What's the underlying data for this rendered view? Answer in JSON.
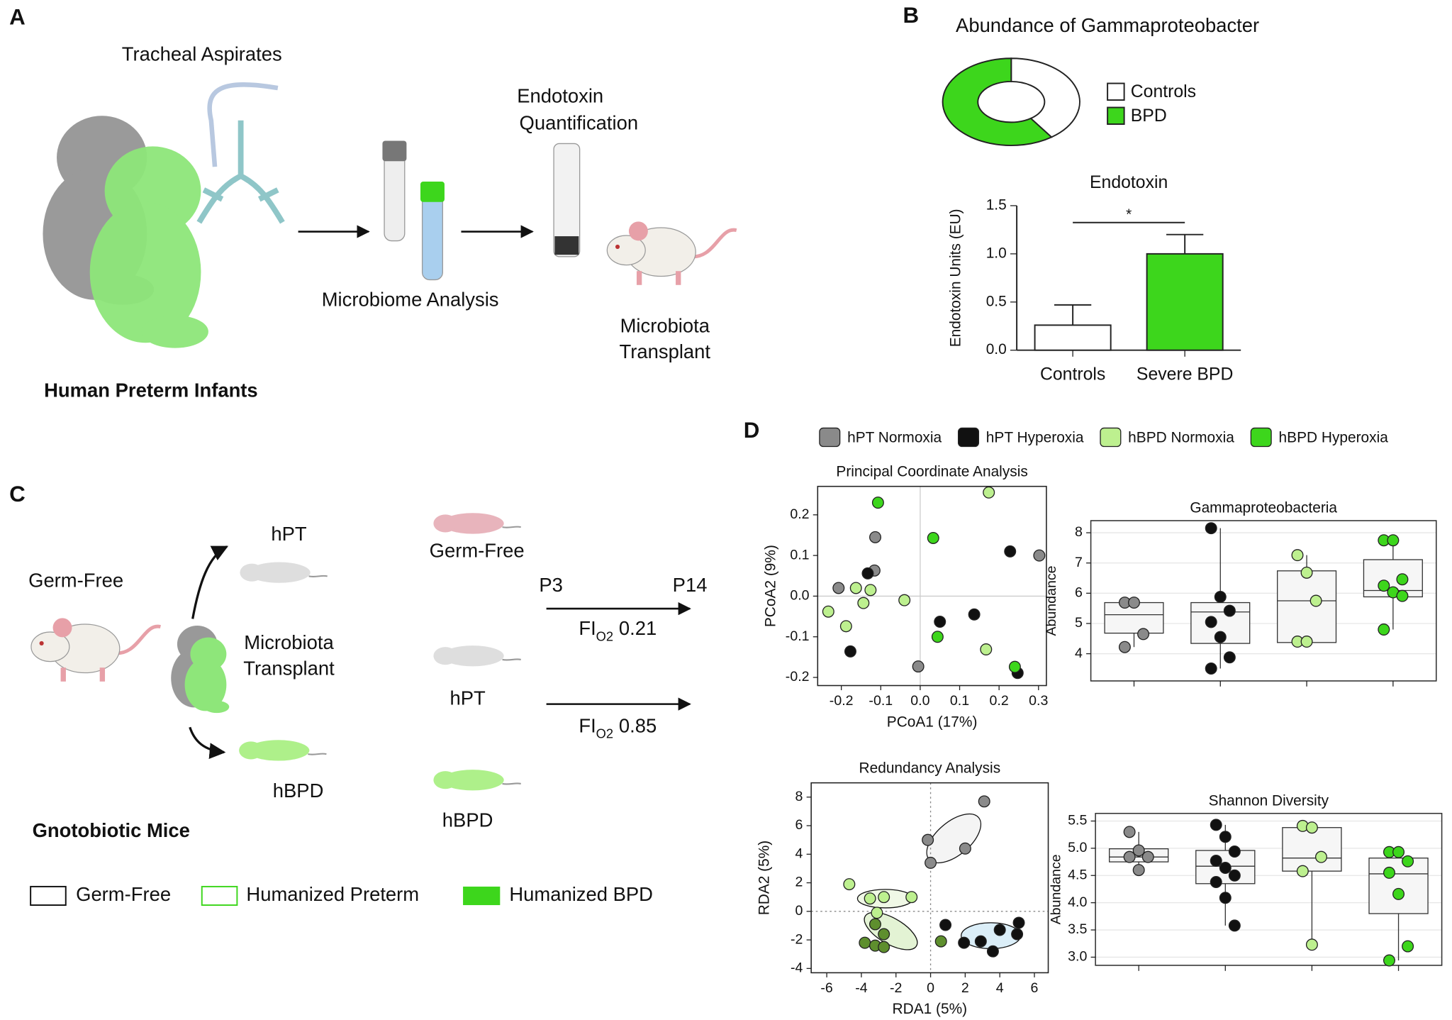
{
  "panels": {
    "A": {
      "label": "A",
      "aspirates": "Tracheal Aspirates",
      "microbiome": "Microbiome Analysis",
      "endotoxin": [
        "Endotoxin",
        "Quantification"
      ],
      "transplant": [
        "Microbiota",
        "Transplant"
      ],
      "caption": "Human Preterm Infants"
    },
    "B": {
      "label": "B"
    },
    "C": {
      "label": "C",
      "germ_free_left": "Germ-Free",
      "hpt_left": "hPT",
      "transplant": [
        "Microbiota",
        "Transplant"
      ],
      "hbpd_left": "hBPD",
      "germ_free_right": "Germ-Free",
      "hpt_right": "hPT",
      "hbpd_right": "hBPD",
      "start": "P3",
      "end": "P14",
      "fio2_low": {
        "base": "FI",
        "sub": "O2",
        "value": 0.21
      },
      "fio2_high": {
        "base": "FI",
        "sub": "O2",
        "value": 0.85
      },
      "caption": "Gnotobiotic Mice",
      "legend": [
        "Germ-Free",
        "Humanized Preterm",
        "Humanized BPD"
      ]
    },
    "D": {
      "label": "D"
    }
  },
  "chart_data": [
    {
      "type": "pie",
      "title": "Abundance of Gammaproteobacter",
      "categories": [
        "Controls",
        "BPD"
      ],
      "values": [
        40,
        60
      ],
      "colors": [
        "#ffffff",
        "#3dd61c"
      ],
      "donut": true
    },
    {
      "type": "bar",
      "title": "Endotoxin",
      "ylabel": "Endotoxin Units (EU)",
      "categories": [
        "Controls",
        "Severe BPD"
      ],
      "values": [
        0.26,
        1.0
      ],
      "errors": [
        0.21,
        0.2
      ],
      "colors": [
        "#ffffff",
        "#3dd61c"
      ],
      "ylim": [
        0,
        1.5
      ],
      "yticks": [
        {
          "value": 0,
          "label": "0.0"
        },
        0.5,
        {
          "value": 1,
          "label": "1.0"
        },
        1.5
      ],
      "annotation": "*"
    },
    {
      "type": "scatter",
      "title": "Principal Coordinate Analysis",
      "xlabel": "PCoA1 (17%)",
      "ylabel": "PCoA2 (9%)",
      "xlim": [
        -0.26,
        0.32
      ],
      "ylim": [
        -0.22,
        0.27
      ],
      "xticks": [
        -0.2,
        -0.1,
        {
          "value": 0,
          "label": "0.0"
        },
        0.1,
        0.2,
        0.3
      ],
      "yticks": [
        -0.2,
        -0.1,
        {
          "value": 0,
          "label": "0.0"
        },
        0.1,
        0.2
      ],
      "zero_line_style": "solid",
      "legend": "top",
      "series": [
        {
          "name": "hPT Normoxia",
          "color": "#8a8a8a",
          "x": [
            -0.207,
            -0.114,
            -0.116,
            -0.005,
            0.302
          ],
          "values": [
            0.02,
            0.145,
            0.063,
            -0.173,
            0.1
          ]
        },
        {
          "name": "hPT Hyperoxia",
          "color": "#111111",
          "x": [
            -0.133,
            -0.177,
            0.05,
            0.137,
            0.228,
            0.247
          ],
          "values": [
            0.056,
            -0.136,
            -0.063,
            -0.045,
            0.11,
            -0.189
          ]
        },
        {
          "name": "hBPD Normoxia",
          "color": "#bdf08f",
          "x": [
            -0.233,
            -0.188,
            -0.163,
            -0.144,
            -0.126,
            -0.04,
            0.174,
            0.167
          ],
          "values": [
            -0.038,
            -0.074,
            0.02,
            -0.017,
            0.015,
            -0.01,
            0.255,
            -0.131
          ]
        },
        {
          "name": "hBPD Hyperoxia",
          "color": "#3dd61c",
          "x": [
            -0.107,
            0.033,
            0.044,
            0.24
          ],
          "values": [
            0.23,
            0.143,
            -0.1,
            -0.174
          ]
        }
      ]
    },
    {
      "type": "box",
      "title": "Gammaproteobacteria",
      "ylabel": "Abundance",
      "categories": [
        null,
        null,
        null,
        null
      ],
      "ylim": [
        3.1,
        8.4
      ],
      "yticks": [
        4,
        5,
        6,
        7,
        8
      ],
      "grid": true,
      "boxes": [
        {
          "color": "#8a8a8a",
          "whisker_low": 4.22,
          "q1": 4.68,
          "median": 5.29,
          "q3": 5.69,
          "whisker_high": 5.69,
          "points": [
            5.69,
            5.69,
            4.65,
            4.22
          ]
        },
        {
          "color": "#111111",
          "whisker_low": 3.51,
          "q1": 4.34,
          "median": 5.38,
          "q3": 5.69,
          "whisker_high": 8.15,
          "points": [
            8.15,
            5.88,
            5.42,
            5.05,
            4.55,
            3.88,
            3.51
          ]
        },
        {
          "color": "#bdf08f",
          "whisker_low": 4.37,
          "q1": 4.37,
          "median": 5.75,
          "q3": 6.74,
          "whisker_high": 7.26,
          "points": [
            7.26,
            6.68,
            5.75,
            4.4,
            4.4
          ]
        },
        {
          "color": "#3dd61c",
          "whisker_low": 4.8,
          "q1": 5.88,
          "median": 6.09,
          "q3": 7.11,
          "whisker_high": 7.75,
          "points": [
            7.75,
            7.75,
            6.46,
            6.25,
            6.03,
            5.91,
            4.8
          ]
        }
      ]
    },
    {
      "type": "scatter",
      "title": "Redundancy Analysis",
      "xlabel": "RDA1 (5%)",
      "ylabel": "RDA2 (5%)",
      "xlim": [
        -6.9,
        6.8
      ],
      "ylim": [
        -4.3,
        9
      ],
      "xticks": [
        -6,
        -4,
        -2,
        0,
        2,
        4,
        6
      ],
      "yticks": [
        -4,
        -2,
        0,
        2,
        4,
        6,
        8
      ],
      "zero_line_style": "dotted",
      "series": [
        {
          "color": "#8a8a8a",
          "x": [
            3.1,
            -0.16,
            0,
            2.0
          ],
          "values": [
            7.7,
            5.0,
            3.4,
            4.4
          ]
        },
        {
          "color": "#111111",
          "x": [
            0.86,
            1.93,
            2.9,
            3.6,
            4.0,
            5.1,
            5.0
          ],
          "values": [
            -0.95,
            -2.2,
            -2.1,
            -2.8,
            -1.3,
            -0.8,
            -1.6
          ]
        },
        {
          "color": "#bdf08f",
          "x": [
            -4.7,
            -3.5,
            -2.7,
            -1.1,
            -3.1
          ],
          "values": [
            1.9,
            0.9,
            1.0,
            1.0,
            -0.1
          ]
        },
        {
          "color": "#5e8f2e",
          "x": [
            -3.2,
            -2.7,
            -3.8,
            -3.2,
            -2.7,
            0.6
          ],
          "values": [
            -0.9,
            -1.6,
            -2.2,
            -2.4,
            -2.5,
            -2.1
          ]
        }
      ]
    },
    {
      "type": "box",
      "title": "Shannon Diversity",
      "ylabel": "Abundance",
      "categories": [
        null,
        null,
        null,
        null
      ],
      "ylim": [
        2.85,
        5.64
      ],
      "yticks": [
        {
          "value": 3,
          "label": "3.0"
        },
        3.5,
        {
          "value": 4,
          "label": "4.0"
        },
        4.5,
        {
          "value": 5,
          "label": "5.0"
        },
        5.5
      ],
      "grid": true,
      "boxes": [
        {
          "color": "#8a8a8a",
          "whisker_low": 4.6,
          "q1": 4.75,
          "median": 4.84,
          "q3": 4.99,
          "whisker_high": 5.3,
          "points": [
            5.3,
            4.96,
            4.84,
            4.84,
            4.6
          ]
        },
        {
          "color": "#111111",
          "whisker_low": 3.58,
          "q1": 4.35,
          "median": 4.67,
          "q3": 4.96,
          "whisker_high": 5.43,
          "points": [
            5.43,
            5.21,
            4.94,
            4.77,
            4.64,
            4.5,
            4.38,
            4.09,
            3.58
          ]
        },
        {
          "color": "#bdf08f",
          "whisker_low": 3.23,
          "q1": 4.58,
          "median": 4.82,
          "q3": 5.38,
          "whisker_high": 5.41,
          "points": [
            5.41,
            5.38,
            4.84,
            4.58,
            3.23
          ]
        },
        {
          "color": "#3dd61c",
          "whisker_low": 2.94,
          "q1": 3.8,
          "median": 4.53,
          "q3": 4.82,
          "whisker_high": 4.93,
          "points": [
            4.93,
            4.93,
            4.76,
            4.55,
            4.16,
            3.2,
            2.94
          ]
        }
      ]
    }
  ]
}
